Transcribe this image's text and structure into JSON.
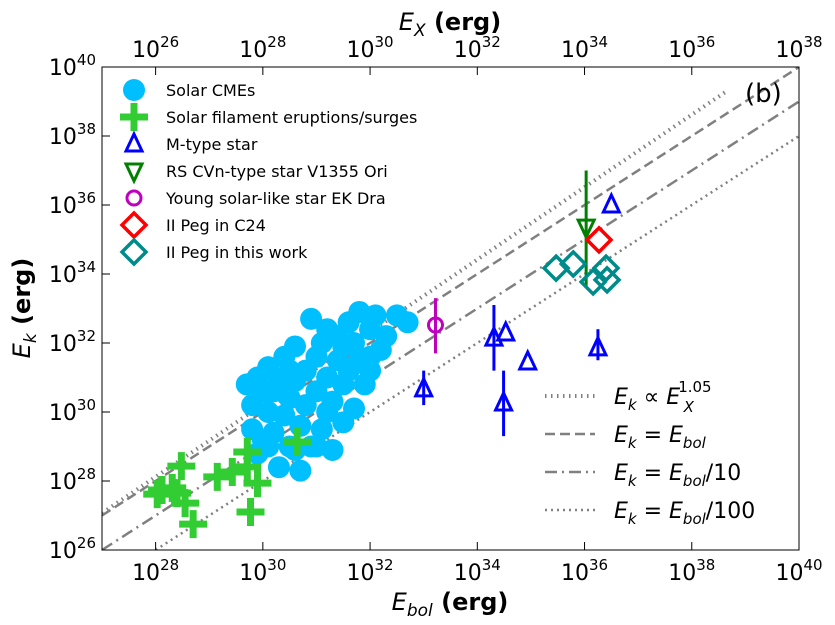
{
  "chart_data": {
    "type": "scatter",
    "panel_label": "(b)",
    "xlabel": {
      "main": "E",
      "sub": "bol",
      "suffix": " (erg)"
    },
    "ylabel": {
      "main": "E",
      "sub": "k",
      "suffix": " (erg)"
    },
    "top_xlabel": {
      "main": "E",
      "sub": "X",
      "suffix": " (erg)"
    },
    "xlim_log10": [
      27,
      40
    ],
    "ylim_log10": [
      26,
      40
    ],
    "top_xlim_log10": [
      25,
      38
    ],
    "xticks_log10": [
      28,
      30,
      32,
      34,
      36,
      38,
      40
    ],
    "yticks_log10": [
      26,
      28,
      30,
      32,
      34,
      36,
      38,
      40
    ],
    "top_xticks_log10": [
      26,
      28,
      30,
      32,
      34,
      36,
      38
    ],
    "tick_base": "10",
    "grid": false,
    "legend_placement": "top-left",
    "series": [
      {
        "name": "Solar CMEs",
        "marker": "filled-circle",
        "color": "#00BFFF",
        "points": [
          [
            29.7,
            30.8
          ],
          [
            29.8,
            30.2
          ],
          [
            29.8,
            29.5
          ],
          [
            29.9,
            28.8
          ],
          [
            30.0,
            29.2
          ],
          [
            30.0,
            30.6
          ],
          [
            30.1,
            31.3
          ],
          [
            30.1,
            30.0
          ],
          [
            30.2,
            29.4
          ],
          [
            30.3,
            30.9
          ],
          [
            30.3,
            28.4
          ],
          [
            30.4,
            29.9
          ],
          [
            30.4,
            31.6
          ],
          [
            30.5,
            30.4
          ],
          [
            30.5,
            29.0
          ],
          [
            30.6,
            31.9
          ],
          [
            30.6,
            30.9
          ],
          [
            30.7,
            29.6
          ],
          [
            30.7,
            28.3
          ],
          [
            30.8,
            31.2
          ],
          [
            30.8,
            30.2
          ],
          [
            30.9,
            32.7
          ],
          [
            30.9,
            29.0
          ],
          [
            31.0,
            31.6
          ],
          [
            31.0,
            30.6
          ],
          [
            31.1,
            32.0
          ],
          [
            31.1,
            29.5
          ],
          [
            31.2,
            31.0
          ],
          [
            31.2,
            32.4
          ],
          [
            31.3,
            30.3
          ],
          [
            31.3,
            28.9
          ],
          [
            31.4,
            31.5
          ],
          [
            31.4,
            32.2
          ],
          [
            31.5,
            30.8
          ],
          [
            31.5,
            29.7
          ],
          [
            31.6,
            32.6
          ],
          [
            31.6,
            31.2
          ],
          [
            31.7,
            30.1
          ],
          [
            31.7,
            32.0
          ],
          [
            31.8,
            31.5
          ],
          [
            31.8,
            32.9
          ],
          [
            31.9,
            30.8
          ],
          [
            32.0,
            32.4
          ],
          [
            32.0,
            31.2
          ],
          [
            32.1,
            32.8
          ],
          [
            32.2,
            31.8
          ],
          [
            32.3,
            32.2
          ],
          [
            32.5,
            32.8
          ],
          [
            32.7,
            32.6
          ],
          [
            30.2,
            30.6
          ],
          [
            29.9,
            31.0
          ],
          [
            30.5,
            31.2
          ],
          [
            31.0,
            29.0
          ],
          [
            30.6,
            28.9
          ],
          [
            31.2,
            30.0
          ],
          [
            30.1,
            29.0
          ],
          [
            32.0,
            31.6
          ],
          [
            31.5,
            31.9
          ]
        ]
      },
      {
        "name": "Solar filament eruptions/surges",
        "marker": "plus",
        "color": "#32CD32",
        "points": [
          [
            28.48,
            28.43
          ],
          [
            29.71,
            28.84
          ],
          [
            30.64,
            29.13
          ],
          [
            29.15,
            28.12
          ],
          [
            29.43,
            28.26
          ],
          [
            29.71,
            28.41
          ],
          [
            29.9,
            27.94
          ],
          [
            28.03,
            27.62
          ],
          [
            28.31,
            27.8
          ],
          [
            28.4,
            27.65
          ],
          [
            28.55,
            27.36
          ],
          [
            28.7,
            26.75
          ],
          [
            29.77,
            27.1
          ],
          [
            28.12,
            27.74
          ]
        ]
      },
      {
        "name": "M-type star",
        "marker": "open-triangle-up",
        "color": "#0000FF",
        "points": [
          [
            33.0,
            30.67,
            30.2,
            31.2
          ],
          [
            34.31,
            32.14,
            31.2,
            33.1
          ],
          [
            34.53,
            32.29,
            null,
            null
          ],
          [
            34.49,
            30.26,
            29.3,
            31.2
          ],
          [
            34.94,
            31.45,
            null,
            null
          ],
          [
            36.5,
            36.0,
            null,
            null
          ],
          [
            36.25,
            31.86,
            31.5,
            32.4
          ]
        ]
      },
      {
        "name": "RS CVn-type star V1355 Ori",
        "marker": "open-triangle-down",
        "color": "#008000",
        "points": [
          [
            36.03,
            35.36,
            33.6,
            37.0
          ]
        ]
      },
      {
        "name": "Young solar-like star EK Dra",
        "marker": "open-circle",
        "color": "#BF00BF",
        "points": [
          [
            33.22,
            32.52,
            31.7,
            33.3
          ]
        ]
      },
      {
        "name": "II Peg in C24",
        "marker": "open-diamond",
        "color": "#FF0000",
        "points": [
          [
            36.27,
            34.99
          ]
        ]
      },
      {
        "name": "II Peg in this work",
        "marker": "open-diamond",
        "color": "#008B8B",
        "points": [
          [
            35.47,
            34.17
          ],
          [
            35.79,
            34.29
          ],
          [
            36.16,
            33.77
          ],
          [
            36.4,
            34.17
          ],
          [
            36.42,
            33.83
          ]
        ]
      }
    ],
    "lines": [
      {
        "name": "power-law",
        "label_main": "E",
        "label_sub": "k",
        "label_rel": " ∝ ",
        "label_main2": "E",
        "label_sub2": "X",
        "label_sup2": "1.05",
        "label_tail": "",
        "style": "thick-dotted",
        "from": [
          27,
          27.07
        ],
        "to": [
          38.68,
          39.33
        ]
      },
      {
        "name": "equal",
        "label_main": "E",
        "label_sub": "k",
        "label_rel": " = ",
        "label_main2": "E",
        "label_sub2": "bol",
        "label_sup2": "",
        "label_tail": "",
        "style": "dashed",
        "from": [
          27,
          27
        ],
        "to": [
          40,
          40
        ]
      },
      {
        "name": "tenth",
        "label_main": "E",
        "label_sub": "k",
        "label_rel": " = ",
        "label_main2": "E",
        "label_sub2": "bol",
        "label_sup2": "",
        "label_tail": "/10",
        "style": "dashdot",
        "from": [
          27,
          26
        ],
        "to": [
          40,
          39
        ]
      },
      {
        "name": "hundredth",
        "label_main": "E",
        "label_sub": "k",
        "label_rel": " = ",
        "label_main2": "E",
        "label_sub2": "bol",
        "label_sup2": "",
        "label_tail": "/100",
        "style": "dotted",
        "from": [
          28,
          26
        ],
        "to": [
          40,
          38
        ]
      }
    ],
    "line_color": "#808080"
  }
}
